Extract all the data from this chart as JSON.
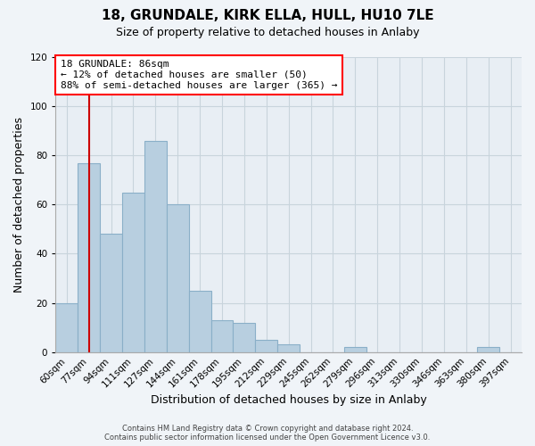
{
  "title": "18, GRUNDALE, KIRK ELLA, HULL, HU10 7LE",
  "subtitle": "Size of property relative to detached houses in Anlaby",
  "xlabel": "Distribution of detached houses by size in Anlaby",
  "ylabel": "Number of detached properties",
  "bins": [
    "60sqm",
    "77sqm",
    "94sqm",
    "111sqm",
    "127sqm",
    "144sqm",
    "161sqm",
    "178sqm",
    "195sqm",
    "212sqm",
    "229sqm",
    "245sqm",
    "262sqm",
    "279sqm",
    "296sqm",
    "313sqm",
    "330sqm",
    "346sqm",
    "363sqm",
    "380sqm",
    "397sqm"
  ],
  "counts": [
    20,
    77,
    48,
    65,
    86,
    60,
    25,
    13,
    12,
    5,
    3,
    0,
    0,
    2,
    0,
    0,
    0,
    0,
    0,
    2,
    0
  ],
  "bar_color": "#b8cfe0",
  "bar_edge_color": "#8aafc8",
  "vline_color": "#cc0000",
  "vline_x": 1.5,
  "ylim": [
    0,
    120
  ],
  "yticks": [
    0,
    20,
    40,
    60,
    80,
    100,
    120
  ],
  "annotation_title": "18 GRUNDALE: 86sqm",
  "annotation_line1": "← 12% of detached houses are smaller (50)",
  "annotation_line2": "88% of semi-detached houses are larger (365) →",
  "footer_line1": "Contains HM Land Registry data © Crown copyright and database right 2024.",
  "footer_line2": "Contains public sector information licensed under the Open Government Licence v3.0.",
  "background_color": "#f0f4f8",
  "plot_bg_color": "#e8eef4",
  "grid_color": "#c8d4dc",
  "title_fontsize": 11,
  "subtitle_fontsize": 9,
  "ylabel_fontsize": 9,
  "xlabel_fontsize": 9,
  "tick_fontsize": 7.5,
  "annotation_fontsize": 8,
  "footer_fontsize": 6
}
